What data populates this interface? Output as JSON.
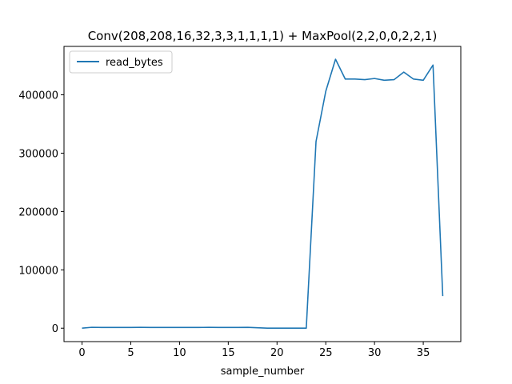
{
  "chart_data": {
    "type": "line",
    "title": "Conv(208,208,16,32,3,3,1,1,1,1) + MaxPool(2,2,0,0,2,2,1)",
    "xlabel": "sample_number",
    "ylabel": "",
    "xlim": [
      -1.85,
      38.85
    ],
    "ylim": [
      -23000,
      483000
    ],
    "grid": false,
    "legend_position": "top-left",
    "x_ticks": [
      0,
      5,
      10,
      15,
      20,
      25,
      30,
      35
    ],
    "x_tick_labels": [
      "0",
      "5",
      "10",
      "15",
      "20",
      "25",
      "30",
      "35"
    ],
    "y_ticks": [
      0,
      100000,
      200000,
      300000,
      400000
    ],
    "y_tick_labels": [
      "0",
      "100000",
      "200000",
      "300000",
      "400000"
    ],
    "series": [
      {
        "name": "read_bytes",
        "color": "#1f77b4",
        "x": [
          0,
          1,
          2,
          3,
          4,
          5,
          6,
          7,
          8,
          9,
          10,
          11,
          12,
          13,
          14,
          15,
          16,
          17,
          18,
          19,
          20,
          21,
          22,
          23,
          24,
          25,
          26,
          27,
          28,
          29,
          30,
          31,
          32,
          33,
          34,
          35,
          36,
          37
        ],
        "values": [
          0,
          1500,
          1300,
          1300,
          1300,
          1300,
          1400,
          1300,
          1300,
          1300,
          1300,
          1300,
          1300,
          1400,
          1300,
          1300,
          1300,
          1400,
          700,
          0,
          0,
          0,
          0,
          0,
          320000,
          406000,
          461000,
          427000,
          427000,
          426000,
          428000,
          425000,
          426000,
          439000,
          427000,
          425000,
          451000,
          55000
        ]
      }
    ]
  }
}
